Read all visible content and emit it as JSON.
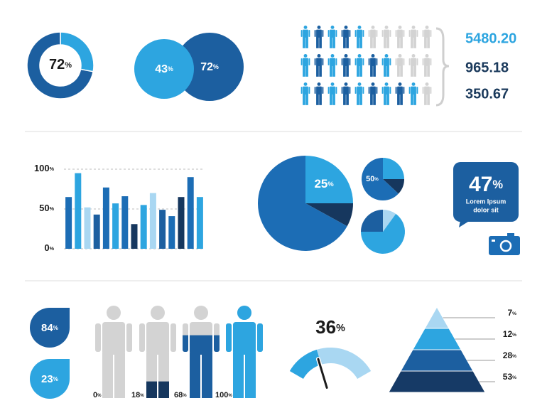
{
  "chart_data": [
    {
      "type": "donut",
      "values": [
        28,
        72
      ],
      "value_labels": [
        null,
        "72%"
      ],
      "colors": [
        "#2da5e0",
        "#1c5fa0"
      ]
    },
    {
      "type": "venn",
      "values": [
        72,
        43
      ],
      "value_labels": [
        "72%",
        "43%"
      ],
      "colors": [
        "#1c5fa0",
        "#2da5e0"
      ]
    },
    {
      "type": "pictogram",
      "values": [
        5480.2,
        965.18,
        350.67
      ],
      "value_labels": [
        "5480.20",
        "965.18",
        "350.67"
      ],
      "colors": [
        "#2da5e0",
        "#1b3a5c",
        "#1b3a5c"
      ],
      "filled": [
        5,
        7,
        9
      ],
      "icons_per_row": 10,
      "icon_colors": [
        "#2da5e0",
        "#1c5fa0"
      ],
      "empty_color": "#d3d3d3"
    },
    {
      "type": "bar",
      "categories": [
        null,
        null,
        null,
        null,
        null,
        null,
        null,
        null,
        null,
        null,
        null,
        null,
        null,
        null,
        null
      ],
      "values": [
        65,
        95,
        52,
        43,
        77,
        57,
        66,
        31,
        55,
        70,
        49,
        41,
        65,
        90,
        65
      ],
      "colors": [
        "#1c6db5",
        "#2da5e0",
        "#a9d7f2",
        "#1c5fa0",
        "#1c6db5",
        "#2da5e0",
        "#1c6db5",
        "#16375e",
        "#2da5e0",
        "#a9d7f2",
        "#1c5fa0",
        "#1c6db5",
        "#16375e",
        "#1c6db5",
        "#2da5e0"
      ],
      "ylim": [
        0,
        100
      ],
      "yticks": [
        {
          "value": 0,
          "label": "0%"
        },
        {
          "value": 50,
          "label": "50%"
        },
        {
          "value": 100,
          "label": "100%"
        }
      ],
      "grid": true
    },
    {
      "type": "pie",
      "values": [
        25,
        8,
        67
      ],
      "value_labels": [
        "25%",
        null,
        null
      ],
      "colors": [
        "#2da5e0",
        "#16375e",
        "#1c6db5"
      ]
    },
    {
      "type": "pie",
      "values": [
        25,
        12,
        13,
        50
      ],
      "value_labels": [
        null,
        null,
        null,
        "50%"
      ],
      "colors": [
        "#2da5e0",
        "#16375e",
        "#1c6db5",
        "#1c6db5"
      ]
    },
    {
      "type": "pie",
      "values": [
        10,
        65,
        25
      ],
      "value_labels": [
        null,
        null,
        null
      ],
      "colors": [
        "#a9d7f2",
        "#2da5e0",
        "#1c5fa0"
      ]
    },
    {
      "type": "callout",
      "values": [
        47
      ],
      "value_labels": [
        "47%"
      ],
      "text": [
        "Lorem Ipsum",
        "dolor sit"
      ],
      "color": "#1c5fa0"
    },
    {
      "type": "drops",
      "values": [
        84,
        23
      ],
      "value_labels": [
        "84%",
        "23%"
      ],
      "colors": [
        "#1c5fa0",
        "#2da5e0"
      ]
    },
    {
      "type": "people",
      "values": [
        0,
        18,
        68,
        100
      ],
      "value_labels": [
        "0%",
        "18%",
        "68%",
        "100%"
      ],
      "colors": [
        "#1c6db5",
        "#16375e",
        "#1c5fa0",
        "#2da5e0"
      ],
      "empty_color": "#d3d3d3"
    },
    {
      "type": "gauge",
      "values": [
        36
      ],
      "value_labels": [
        "36%"
      ],
      "colors": [
        "#2da5e0",
        "#a9d7f2"
      ]
    },
    {
      "type": "pyramid",
      "values": [
        7,
        12,
        28,
        53
      ],
      "value_labels": [
        "7%",
        "12%",
        "28%",
        "53%"
      ],
      "colors": [
        "#a9d7f2",
        "#2da5e0",
        "#1c5fa0",
        "#163a66"
      ]
    }
  ]
}
